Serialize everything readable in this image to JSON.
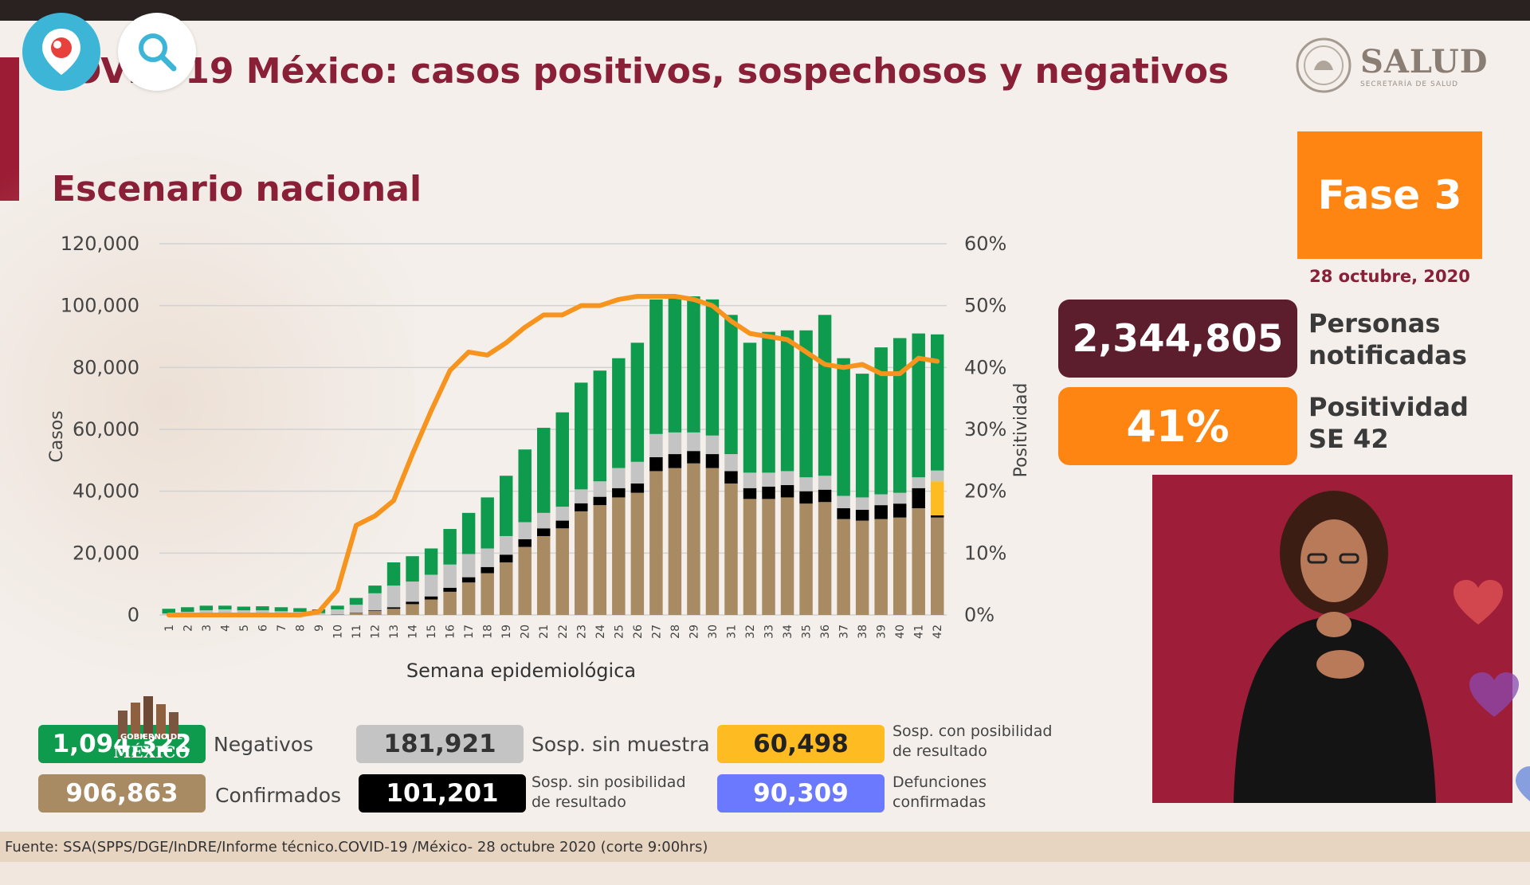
{
  "header": {
    "title": "OVID-19 México: casos positivos, sospechosos y negativos",
    "brand": "SALUD",
    "brand_sub": "SECRETARÍA DE SALUD"
  },
  "subtitle": "Escenario nacional",
  "fase": {
    "label": "Fase 3",
    "date": "28 octubre, 2020"
  },
  "stats": {
    "notificadas_value": "2,344,805",
    "notificadas_label_1": "Personas",
    "notificadas_label_2": "notificadas",
    "positividad_value": "41%",
    "positividad_label_1": "Positividad",
    "positividad_label_2": "SE 42"
  },
  "legend": [
    {
      "value": "1,094,322",
      "label": "Negativos",
      "color": "#0f9b4d"
    },
    {
      "value": "906,863",
      "label": "Confirmados",
      "color": "#a88a63"
    },
    {
      "value": "181,921",
      "label": "Sosp. sin muestra",
      "color": "#c4c4c4"
    },
    {
      "value": "101,201",
      "label_1": "Sosp. sin posibilidad",
      "label_2": "de resultado",
      "color": "#000000"
    },
    {
      "value": "60,498",
      "label_1": "Sosp. con posibilidad",
      "label_2": "de resultado",
      "color": "#ffbb22"
    },
    {
      "value": "90,309",
      "label_1": "Defunciones",
      "label_2": "confirmadas",
      "color": "#6b79ff"
    }
  ],
  "overlay": {
    "gobierno_1": "GOBIERNO DE",
    "gobierno_2": "MÉXICO"
  },
  "source": "Fuente: SSA(SPPS/DGE/InDRE/Informe técnico.COVID-19 /México- 28 octubre 2020 (corte 9:00hrs)",
  "chart_data": {
    "type": "bar",
    "stacked": true,
    "xlabel": "Semana epidemiológica",
    "ylabel": "Casos",
    "y2label": "Positividad",
    "ylim": [
      0,
      120000
    ],
    "y2lim": [
      0,
      60
    ],
    "yticks": [
      "0",
      "20,000",
      "40,000",
      "60,000",
      "80,000",
      "100,000",
      "120,000"
    ],
    "y2ticks": [
      "0%",
      "10%",
      "20%",
      "30%",
      "40%",
      "50%",
      "60%"
    ],
    "grid": true,
    "categories": [
      "1",
      "2",
      "3",
      "4",
      "5",
      "6",
      "7",
      "8",
      "9",
      "10",
      "11",
      "12",
      "13",
      "14",
      "15",
      "16",
      "17",
      "18",
      "19",
      "20",
      "21",
      "22",
      "23",
      "24",
      "25",
      "26",
      "27",
      "28",
      "29",
      "30",
      "31",
      "32",
      "33",
      "34",
      "35",
      "36",
      "37",
      "38",
      "39",
      "40",
      "41",
      "42"
    ],
    "series": [
      {
        "color": "#a88a63",
        "values": [
          0,
          0,
          0,
          0,
          0,
          0,
          0,
          0,
          0,
          300,
          700,
          1300,
          2000,
          3500,
          5000,
          7500,
          10500,
          13500,
          17000,
          22000,
          25500,
          28000,
          33500,
          35500,
          38000,
          39500,
          46500,
          47500,
          49000,
          47500,
          42500,
          37500,
          37500,
          38000,
          36000,
          36500,
          31000,
          30500,
          31000,
          31500,
          34500,
          31500
        ]
      },
      {
        "color": "#000000",
        "values": [
          0,
          0,
          0,
          0,
          0,
          0,
          0,
          0,
          0,
          0,
          100,
          200,
          500,
          800,
          1000,
          1300,
          1700,
          2000,
          2500,
          2500,
          2500,
          2500,
          2600,
          2700,
          3000,
          3000,
          4500,
          4500,
          4000,
          4500,
          4000,
          3500,
          4000,
          4000,
          4000,
          4000,
          3500,
          3500,
          4500,
          4500,
          6500,
          700
        ]
      },
      {
        "color": "#ffbb22",
        "values": [
          0,
          0,
          0,
          0,
          0,
          0,
          0,
          0,
          0,
          0,
          0,
          0,
          0,
          0,
          0,
          0,
          0,
          0,
          0,
          0,
          0,
          0,
          0,
          0,
          0,
          0,
          0,
          0,
          0,
          0,
          0,
          0,
          0,
          0,
          0,
          0,
          0,
          0,
          0,
          0,
          0,
          11000
        ]
      },
      {
        "color": "#c4c4c4",
        "values": [
          500,
          1000,
          1500,
          1800,
          1500,
          1500,
          1200,
          1000,
          600,
          1500,
          2500,
          5500,
          7000,
          6500,
          7000,
          7500,
          7500,
          6000,
          6000,
          5500,
          5000,
          4500,
          4500,
          5000,
          6500,
          7000,
          7500,
          7000,
          6000,
          6000,
          5500,
          5000,
          4500,
          4500,
          4500,
          4500,
          4000,
          4000,
          3500,
          3500,
          3500,
          3500
        ]
      },
      {
        "color": "#0f9b4d",
        "values": [
          1500,
          1500,
          1500,
          1200,
          1200,
          1300,
          1300,
          1200,
          1200,
          1200,
          2200,
          2500,
          7500,
          8200,
          8500,
          11500,
          13300,
          16500,
          19500,
          23500,
          27500,
          30500,
          34500,
          35800,
          35500,
          38500,
          43500,
          44000,
          44000,
          44000,
          45000,
          42000,
          45500,
          45500,
          47500,
          52000,
          44500,
          40000,
          47500,
          50000,
          46500,
          44000
        ]
      }
    ],
    "line": {
      "name": "Positividad",
      "color": "#f7941d",
      "values": [
        0,
        0,
        0,
        0,
        0,
        0,
        0,
        0,
        0.5,
        4,
        14.5,
        16,
        18.5,
        26,
        33,
        39.5,
        42.5,
        42,
        44,
        46.5,
        48.5,
        48.5,
        50,
        50,
        51,
        51.5,
        51.5,
        51.5,
        51,
        50,
        47.5,
        45.5,
        45,
        44.5,
        42.5,
        40.5,
        40,
        40.5,
        39,
        39,
        41.5,
        41
      ]
    }
  }
}
